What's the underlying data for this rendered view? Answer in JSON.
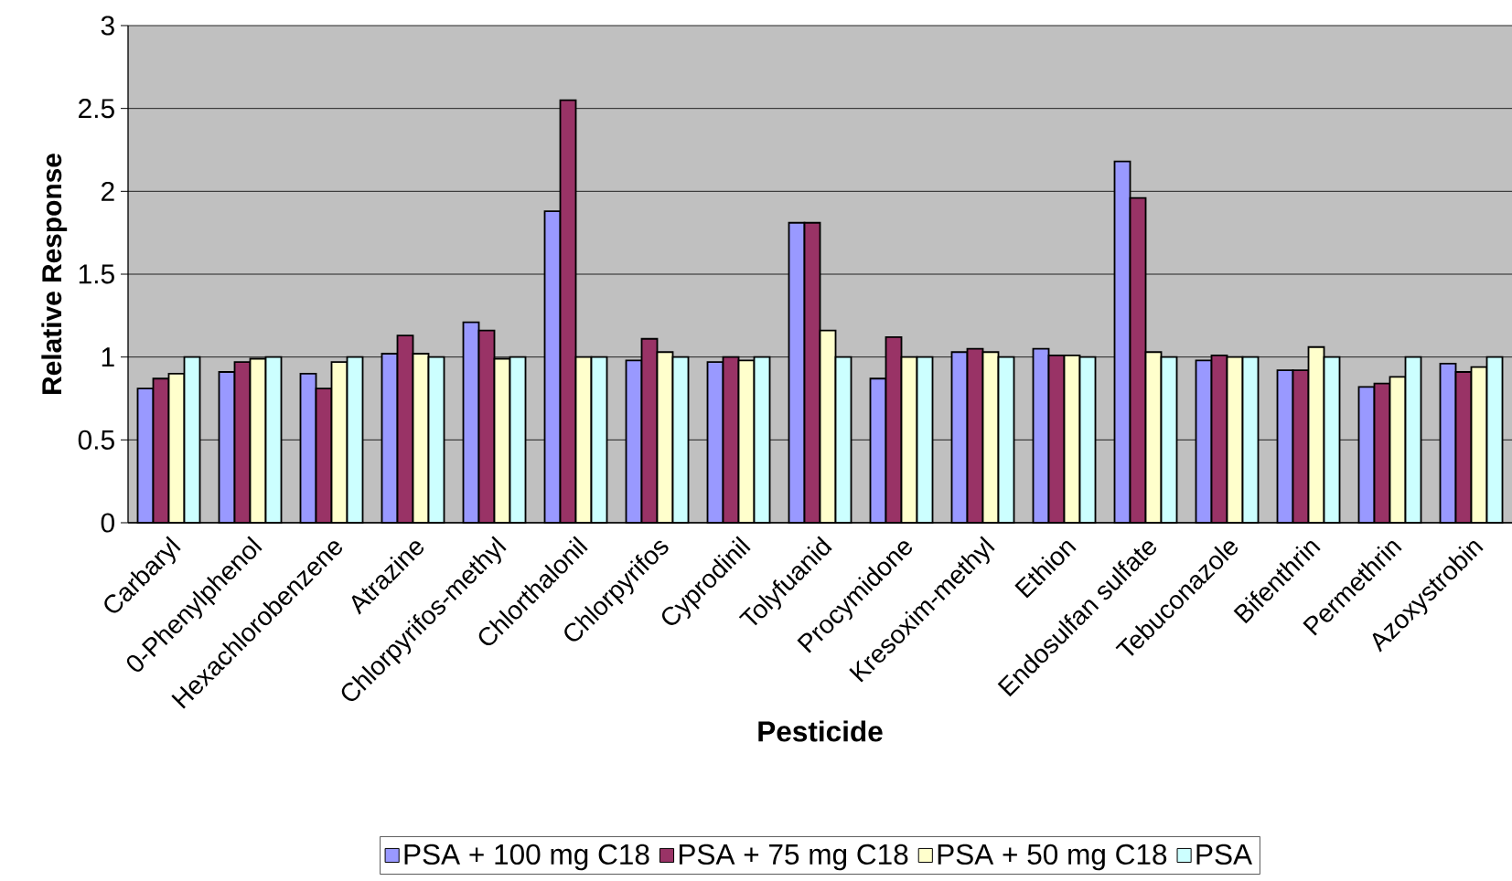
{
  "chart_data": {
    "type": "bar",
    "xlabel": "Pesticide",
    "ylabel": "Relative Response",
    "categories": [
      "Carbaryl",
      "0-Phenylphenol",
      "Hexachlorobenzene",
      "Atrazine",
      "Chlorpyrifos-methyl",
      "Chlorthalonil",
      "Chlorpyrifos",
      "Cyprodinil",
      "Tolyfuanid",
      "Procymidone",
      "Kresoxim-methyl",
      "Ethion",
      "Endosulfan sulfate",
      "Tebuconazole",
      "Bifenthrin",
      "Permethrin",
      "Azoxystrobin"
    ],
    "series": [
      {
        "name": "PSA + 100 mg C18",
        "color": "#9999ff",
        "values": [
          0.81,
          0.91,
          0.9,
          1.02,
          1.21,
          1.88,
          0.98,
          0.97,
          1.81,
          0.87,
          1.03,
          1.05,
          2.18,
          0.98,
          0.92,
          0.82,
          0.96
        ]
      },
      {
        "name": "PSA + 75 mg C18",
        "color": "#993366",
        "values": [
          0.87,
          0.97,
          0.81,
          1.13,
          1.16,
          2.55,
          1.11,
          1.0,
          1.81,
          1.12,
          1.05,
          1.01,
          1.96,
          1.01,
          0.92,
          0.84,
          0.91
        ]
      },
      {
        "name": "PSA + 50 mg C18",
        "color": "#ffffcc",
        "values": [
          0.9,
          0.99,
          0.97,
          1.02,
          0.99,
          1.0,
          1.03,
          0.98,
          1.16,
          1.0,
          1.03,
          1.01,
          1.03,
          1.0,
          1.06,
          0.88,
          0.94
        ]
      },
      {
        "name": "PSA",
        "color": "#ccffff",
        "values": [
          1.0,
          1.0,
          1.0,
          1.0,
          1.0,
          1.0,
          1.0,
          1.0,
          1.0,
          1.0,
          1.0,
          1.0,
          1.0,
          1.0,
          1.0,
          1.0,
          1.0
        ]
      }
    ],
    "ylim": [
      0,
      3
    ],
    "yticks": [
      0,
      0.5,
      1,
      1.5,
      2,
      2.5,
      3
    ],
    "grid": "y",
    "legend": "bottom"
  }
}
